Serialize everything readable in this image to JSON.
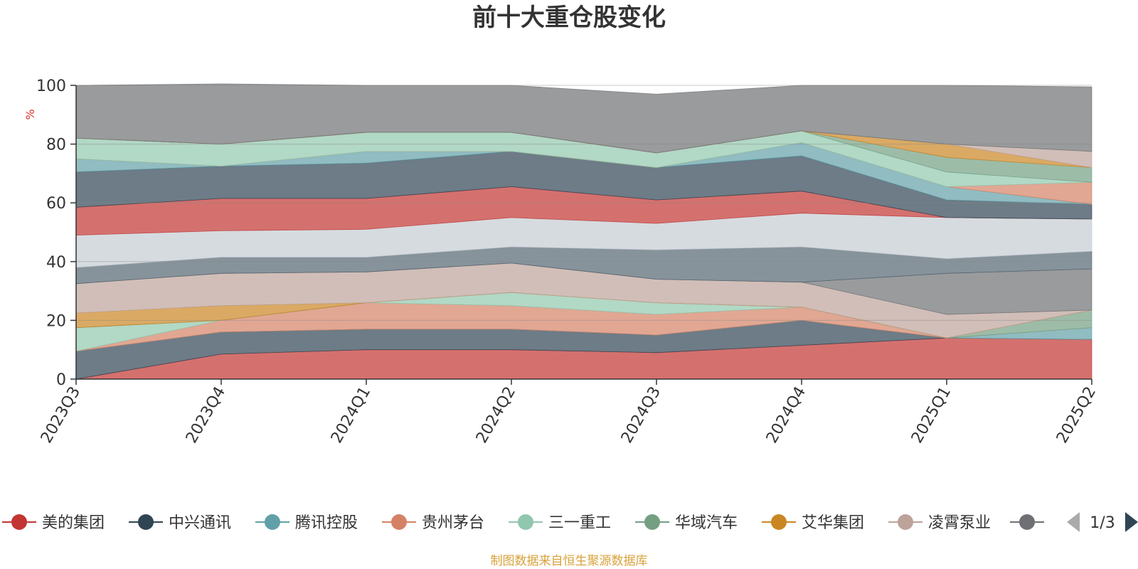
{
  "chart_data": {
    "type": "area",
    "title": "前十大重仓股变化",
    "ylabel": "%",
    "ylim": [
      0,
      100
    ],
    "yticks": [
      0,
      20,
      40,
      60,
      80,
      100
    ],
    "categories": [
      "2023Q3",
      "2023Q4",
      "2024Q1",
      "2024Q2",
      "2024Q3",
      "2024Q4",
      "2025Q1",
      "2025Q2"
    ],
    "grid": true,
    "legend_position": "bottom",
    "series": [
      {
        "name": "美的集团",
        "color": "#c23531",
        "values": [
          0,
          8.5,
          10,
          10,
          9,
          11.5,
          14,
          13.5
        ]
      },
      {
        "name": "中兴通讯",
        "color": "#2f4554",
        "values": [
          9.5,
          7.5,
          7,
          7,
          6,
          8.5,
          0,
          0
        ]
      },
      {
        "name": "腾讯控股",
        "color": "#61a0a8",
        "values": [
          0,
          0,
          0,
          0,
          0,
          0,
          0,
          4
        ]
      },
      {
        "name": "贵州茅台",
        "color": "#d48265",
        "values": [
          0,
          4,
          9,
          8,
          7,
          4.5,
          0,
          0
        ]
      },
      {
        "name": "三一重工",
        "color": "#91c7ae",
        "values": [
          8,
          0,
          0,
          4.5,
          4,
          0,
          0,
          0
        ]
      },
      {
        "name": "华域汽车",
        "color": "#749f83",
        "values": [
          0,
          0,
          0,
          0,
          0,
          0,
          0,
          6
        ]
      },
      {
        "name": "艾华集团",
        "color": "#ca8622",
        "values": [
          5,
          5,
          0,
          0,
          0,
          0,
          0,
          0
        ]
      },
      {
        "name": "凌霄泵业",
        "color": "#bda29a",
        "values": [
          10,
          11,
          10.5,
          10,
          8,
          8.5,
          8,
          0
        ]
      },
      {
        "name": "",
        "color": "#6e7074",
        "values": [
          0,
          0,
          0,
          0,
          0,
          0,
          14,
          14
        ]
      },
      {
        "name": "",
        "color": "#546570",
        "values": [
          5.5,
          5.5,
          5,
          5.5,
          10,
          12,
          5,
          6
        ]
      },
      {
        "name": "",
        "color": "#c4ccd3",
        "values": [
          11,
          9,
          9.5,
          10,
          9,
          11.5,
          14,
          11
        ]
      },
      {
        "name": "",
        "color": "#c23531",
        "values": [
          9.5,
          11,
          10.5,
          10.5,
          8,
          7.5,
          0,
          0
        ]
      },
      {
        "name": "",
        "color": "#2f4554",
        "values": [
          12,
          11,
          12,
          12,
          11,
          12,
          6,
          5
        ]
      },
      {
        "name": "",
        "color": "#61a0a8",
        "values": [
          4.5,
          0,
          4,
          0,
          0,
          4.5,
          4.5,
          0
        ]
      },
      {
        "name": "",
        "color": "#d48265",
        "values": [
          0,
          0,
          0,
          0,
          0,
          0,
          0,
          7.5
        ]
      },
      {
        "name": "",
        "color": "#91c7ae",
        "values": [
          7,
          7.5,
          6.5,
          6.5,
          5,
          4,
          5,
          0
        ]
      },
      {
        "name": "",
        "color": "#749f83",
        "values": [
          0,
          0,
          0,
          0,
          0,
          0,
          5,
          5
        ]
      },
      {
        "name": "",
        "color": "#ca8622",
        "values": [
          0,
          0,
          0,
          0,
          0,
          0,
          4.5,
          0
        ]
      },
      {
        "name": "",
        "color": "#bda29a",
        "values": [
          0,
          0,
          0,
          0,
          0,
          0,
          0,
          5.5
        ]
      },
      {
        "name": "",
        "color": "#6e7074",
        "values": [
          18,
          20.5,
          16,
          16,
          20,
          15.5,
          20,
          22
        ]
      }
    ]
  },
  "legend": {
    "page_indicator": "1/3",
    "partial_item_color": "#6e7074"
  },
  "source_note": "制图数据来自恒生聚源数据库"
}
